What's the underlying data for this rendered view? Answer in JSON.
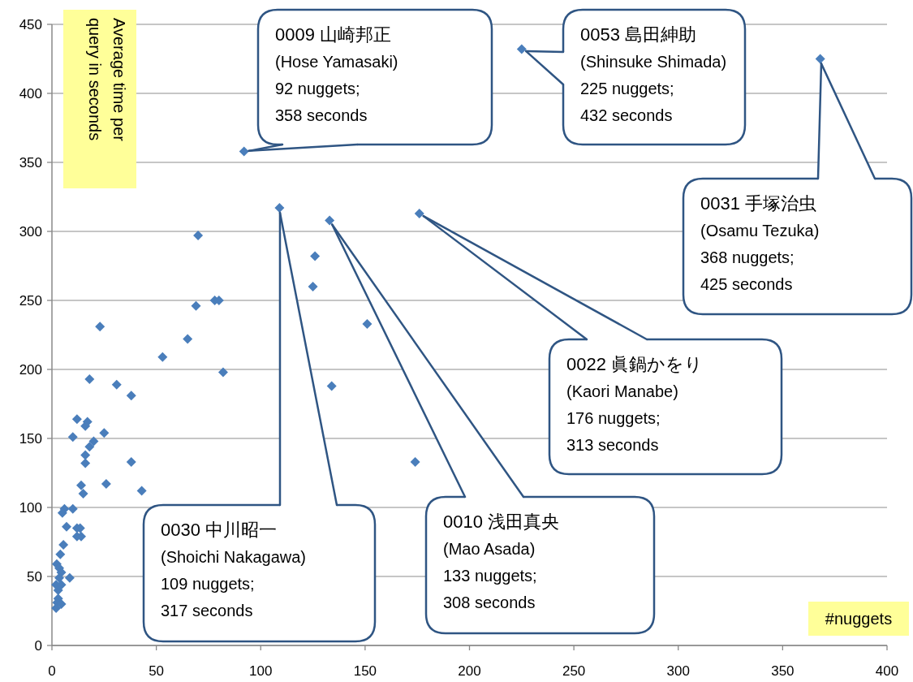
{
  "chart_data": {
    "type": "scatter",
    "xlabel": "#nuggets",
    "ylabel": "Average time per query in seconds",
    "xlim": [
      0,
      400
    ],
    "ylim": [
      0,
      450
    ],
    "xticks": [
      0,
      50,
      100,
      150,
      200,
      250,
      300,
      350,
      400
    ],
    "yticks": [
      0,
      50,
      100,
      150,
      200,
      250,
      300,
      350,
      400,
      450
    ],
    "grid": "y",
    "marker": "diamond",
    "series": [
      {
        "color": "#4a7ebb",
        "x": [
          92,
          109,
          133,
          176,
          225,
          368,
          126,
          125,
          151,
          134,
          174,
          70,
          69,
          78,
          80,
          65,
          82,
          53,
          23,
          38,
          31,
          18,
          12,
          17,
          16,
          10,
          25,
          20,
          18,
          16,
          16,
          38,
          14,
          15,
          26,
          43,
          6,
          5,
          10,
          7,
          12,
          13.5,
          12,
          14,
          5.5,
          4,
          2.3,
          3.5,
          4.5,
          8.5,
          3.5,
          2,
          4.5,
          3,
          3,
          2.5,
          4.5,
          2
        ],
        "values": [
          358,
          317,
          308,
          313,
          432,
          425,
          282,
          260,
          233,
          188,
          133,
          297,
          246,
          250,
          250,
          222,
          198,
          209,
          231,
          181,
          189,
          193,
          164,
          162,
          159,
          151,
          154,
          148,
          144,
          138,
          132,
          133,
          116,
          110,
          117,
          112,
          99,
          96,
          99,
          86,
          85,
          85,
          79,
          79,
          73,
          66,
          59,
          56,
          53,
          49,
          49,
          44,
          44,
          40,
          34,
          31,
          30,
          27
        ]
      }
    ],
    "annotations": [
      {
        "text": "0009 山崎邦正\n(Hose Yamasaki)\n92 nuggets;\n358 seconds",
        "x": 92,
        "y": 358
      },
      {
        "text": "0053 島田紳助\n(Shinsuke Shimada)\n225 nuggets;\n432 seconds",
        "x": 225,
        "y": 432
      },
      {
        "text": "0031 手塚治虫\n(Osamu Tezuka)\n368 nuggets;\n425 seconds",
        "x": 368,
        "y": 425
      },
      {
        "text": "0022 眞鍋かをり\n(Kaori Manabe)\n176 nuggets;\n313 seconds",
        "x": 176,
        "y": 313
      },
      {
        "text": "0010 浅田真央\n(Mao Asada)\n133 nuggets;\n308 seconds",
        "x": 133,
        "y": 308
      },
      {
        "text": "0030 中川昭一\n(Shoichi Nakagawa)\n109 nuggets;\n317 seconds",
        "x": 109,
        "y": 317
      }
    ]
  }
}
